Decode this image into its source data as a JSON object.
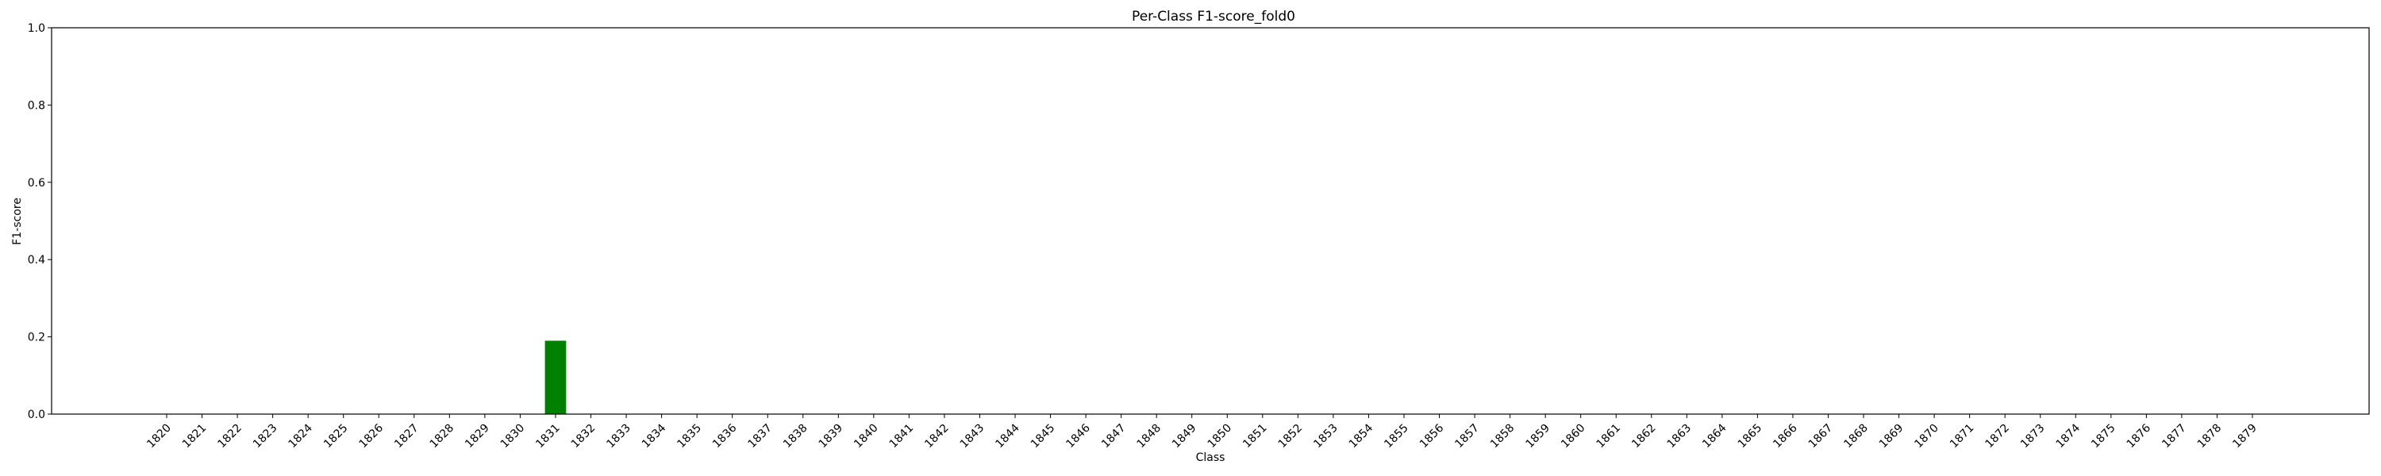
{
  "chart_data": {
    "type": "bar",
    "title": "Per-Class F1-score_fold0",
    "xlabel": "Class",
    "ylabel": "F1-score",
    "ylim": [
      0,
      1.0
    ],
    "yticks": [
      "0.0",
      "0.2",
      "0.4",
      "0.6",
      "0.8",
      "1.0"
    ],
    "categories": [
      "1820",
      "1821",
      "1822",
      "1823",
      "1824",
      "1825",
      "1826",
      "1827",
      "1828",
      "1829",
      "1830",
      "1831",
      "1832",
      "1833",
      "1834",
      "1835",
      "1836",
      "1837",
      "1838",
      "1839",
      "1840",
      "1841",
      "1842",
      "1843",
      "1844",
      "1845",
      "1846",
      "1847",
      "1848",
      "1849",
      "1850",
      "1851",
      "1852",
      "1853",
      "1854",
      "1855",
      "1856",
      "1857",
      "1858",
      "1859",
      "1860",
      "1861",
      "1862",
      "1863",
      "1864",
      "1865",
      "1866",
      "1867",
      "1868",
      "1869",
      "1870",
      "1871",
      "1872",
      "1873",
      "1874",
      "1875",
      "1876",
      "1877",
      "1878",
      "1879"
    ],
    "values": [
      0,
      0,
      0,
      0,
      0,
      0,
      0,
      0,
      0,
      0,
      0,
      0.19,
      0,
      0,
      0,
      0,
      0,
      0,
      0,
      0,
      0,
      0,
      0,
      0,
      0,
      0,
      0,
      0,
      0,
      0,
      0,
      0,
      0,
      0,
      0,
      0,
      0,
      0,
      0,
      0,
      0,
      0,
      0,
      0,
      0,
      0,
      0,
      0,
      0,
      0,
      0,
      0,
      0,
      0,
      0,
      0,
      0,
      0,
      0,
      0
    ],
    "bar_color": "#008000",
    "grid": false,
    "legend": "none"
  }
}
